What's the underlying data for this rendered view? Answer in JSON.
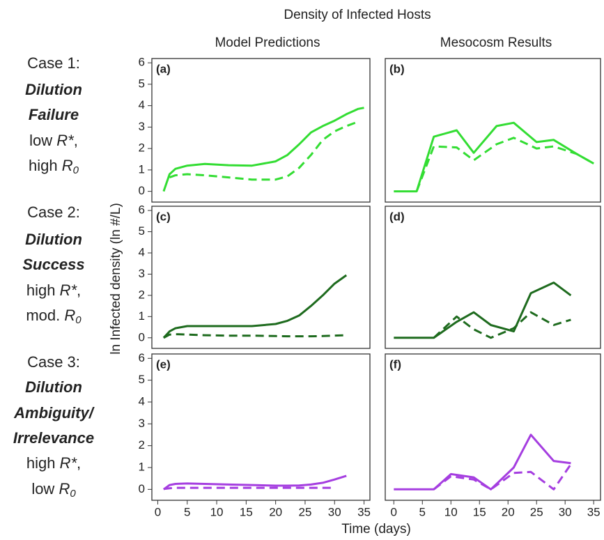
{
  "title": "Density of Infected Hosts",
  "column_titles": [
    "Model Predictions",
    "Mesocosm Results"
  ],
  "y_label": "ln Infected density (ln #/L)",
  "x_label": "Time (days)",
  "row_labels": [
    [
      [
        {
          "text": "Case 1:",
          "style": "normal"
        }
      ],
      [
        {
          "text": "Dilution",
          "style": "bold-italic"
        }
      ],
      [
        {
          "text": "Failure",
          "style": "bold-italic"
        }
      ],
      [
        {
          "text": "low ",
          "style": "normal"
        },
        {
          "text": "R*",
          "style": "italic"
        },
        {
          "text": ",",
          "style": "normal"
        }
      ],
      [
        {
          "text": "high ",
          "style": "normal"
        },
        {
          "text": "R",
          "style": "italic"
        },
        {
          "text": "0",
          "style": "sub"
        }
      ]
    ],
    [
      [
        {
          "text": "Case 2:",
          "style": "normal"
        }
      ],
      [
        {
          "text": "Dilution",
          "style": "bold-italic"
        }
      ],
      [
        {
          "text": "Success",
          "style": "bold-italic"
        }
      ],
      [
        {
          "text": "high ",
          "style": "normal"
        },
        {
          "text": "R*",
          "style": "italic"
        },
        {
          "text": ",",
          "style": "normal"
        }
      ],
      [
        {
          "text": "mod. ",
          "style": "normal"
        },
        {
          "text": "R",
          "style": "italic"
        },
        {
          "text": "0",
          "style": "sub"
        }
      ]
    ],
    [
      [
        {
          "text": "Case 3:",
          "style": "normal"
        }
      ],
      [
        {
          "text": "Dilution",
          "style": "bold-italic"
        }
      ],
      [
        {
          "text": "Ambiguity/",
          "style": "bold-italic"
        }
      ],
      [
        {
          "text": "Irrelevance",
          "style": "bold-italic"
        }
      ],
      [
        {
          "text": "high ",
          "style": "normal"
        },
        {
          "text": "R*",
          "style": "italic"
        },
        {
          "text": ",",
          "style": "normal"
        }
      ],
      [
        {
          "text": "low ",
          "style": "normal"
        },
        {
          "text": "R",
          "style": "italic"
        },
        {
          "text": "0",
          "style": "sub"
        }
      ]
    ]
  ],
  "chart_data": [
    {
      "type": "line",
      "label": "(a)",
      "xlim": [
        -1,
        36
      ],
      "ylim": [
        -0.5,
        6.2
      ],
      "yticks": [
        0,
        1,
        2,
        3,
        4,
        5,
        6
      ],
      "x": [
        1,
        2,
        3,
        5,
        8,
        12,
        16,
        20,
        22,
        24,
        26,
        28,
        30,
        32,
        34,
        35
      ],
      "series": [
        {
          "color": "#33dd33",
          "style": "solid",
          "values": [
            0,
            0.8,
            1.05,
            1.2,
            1.28,
            1.22,
            1.2,
            1.4,
            1.7,
            2.2,
            2.75,
            3.05,
            3.3,
            3.6,
            3.85,
            3.9
          ]
        },
        {
          "color": "#33dd33",
          "style": "dashed",
          "values": [
            null,
            0.65,
            0.75,
            0.8,
            0.75,
            0.65,
            0.55,
            0.55,
            0.7,
            1.1,
            1.7,
            2.4,
            2.8,
            3.05,
            3.25,
            null
          ]
        }
      ]
    },
    {
      "type": "line",
      "label": "(b)",
      "xlim": [
        -1.5,
        36.2
      ],
      "ylim": [
        -0.5,
        6.2
      ],
      "x": [
        0,
        4,
        7,
        11,
        14,
        18,
        21,
        25,
        28,
        32,
        35
      ],
      "series": [
        {
          "color": "#33dd33",
          "style": "solid",
          "values": [
            0,
            0,
            2.55,
            2.85,
            1.8,
            3.05,
            3.2,
            2.3,
            2.4,
            1.75,
            1.3
          ]
        },
        {
          "color": "#33dd33",
          "style": "dashed",
          "values": [
            null,
            0,
            2.1,
            2.05,
            1.45,
            2.2,
            2.5,
            2.0,
            2.1,
            1.75,
            1.3
          ]
        }
      ]
    },
    {
      "type": "line",
      "label": "(c)",
      "xlim": [
        -1,
        36
      ],
      "ylim": [
        -0.5,
        6.2
      ],
      "yticks": [
        0,
        1,
        2,
        3,
        4,
        5,
        6
      ],
      "x": [
        1,
        2,
        3,
        5,
        8,
        12,
        16,
        20,
        22,
        24,
        26,
        28,
        30,
        32,
        34,
        35
      ],
      "series": [
        {
          "color": "#1e6b1e",
          "style": "solid",
          "values": [
            0,
            0.3,
            0.45,
            0.55,
            0.55,
            0.55,
            0.55,
            0.65,
            0.8,
            1.05,
            1.5,
            2.0,
            2.55,
            2.95,
            null,
            null
          ]
        },
        {
          "color": "#1e6b1e",
          "style": "dashed",
          "values": [
            0,
            0.15,
            0.17,
            0.15,
            0.12,
            0.1,
            0.1,
            0.08,
            0.07,
            0.07,
            0.07,
            0.08,
            0.1,
            0.12,
            null,
            null
          ]
        }
      ]
    },
    {
      "type": "line",
      "label": "(d)",
      "xlim": [
        -1.5,
        36.2
      ],
      "ylim": [
        -0.5,
        6.2
      ],
      "x": [
        0,
        7,
        11,
        14,
        17,
        21,
        24,
        28,
        31
      ],
      "series": [
        {
          "color": "#1e6b1e",
          "style": "solid",
          "values": [
            0,
            0,
            0.75,
            1.2,
            0.6,
            0.3,
            2.1,
            2.6,
            2.0
          ]
        },
        {
          "color": "#1e6b1e",
          "style": "dashed",
          "values": [
            null,
            0,
            1.0,
            0.4,
            0,
            0.45,
            1.2,
            0.6,
            0.85
          ]
        }
      ]
    },
    {
      "type": "line",
      "label": "(e)",
      "xlim": [
        -1,
        36
      ],
      "ylim": [
        -0.5,
        6.2
      ],
      "yticks": [
        0,
        1,
        2,
        3,
        4,
        5,
        6
      ],
      "xticks": [
        0,
        5,
        10,
        15,
        20,
        25,
        30,
        35
      ],
      "x": [
        1,
        2,
        3,
        5,
        8,
        12,
        16,
        20,
        22,
        24,
        26,
        28,
        30,
        32,
        34,
        35
      ],
      "series": [
        {
          "color": "#a53ee0",
          "style": "solid",
          "values": [
            0,
            0.2,
            0.25,
            0.27,
            0.25,
            0.22,
            0.2,
            0.17,
            0.17,
            0.18,
            0.22,
            0.3,
            0.45,
            0.62,
            null,
            null
          ]
        },
        {
          "color": "#a53ee0",
          "style": "dashed",
          "values": [
            0.02,
            0.05,
            0.07,
            0.07,
            0.07,
            0.07,
            0.07,
            0.07,
            0.07,
            0.07,
            0.07,
            0.07,
            0.07,
            null,
            null,
            null
          ]
        }
      ]
    },
    {
      "type": "line",
      "label": "(f)",
      "xlim": [
        -1.5,
        36.2
      ],
      "ylim": [
        -0.5,
        6.2
      ],
      "xticks": [
        0,
        5,
        10,
        15,
        20,
        25,
        30,
        35
      ],
      "x": [
        0,
        7,
        10,
        14,
        17,
        21,
        24,
        28,
        31
      ],
      "series": [
        {
          "color": "#a53ee0",
          "style": "solid",
          "values": [
            0,
            0,
            0.7,
            0.55,
            0,
            1.0,
            2.5,
            1.3,
            1.2
          ]
        },
        {
          "color": "#a53ee0",
          "style": "dashed",
          "values": [
            null,
            0,
            0.6,
            0.45,
            0,
            0.75,
            0.8,
            0,
            1.15
          ]
        }
      ]
    }
  ]
}
